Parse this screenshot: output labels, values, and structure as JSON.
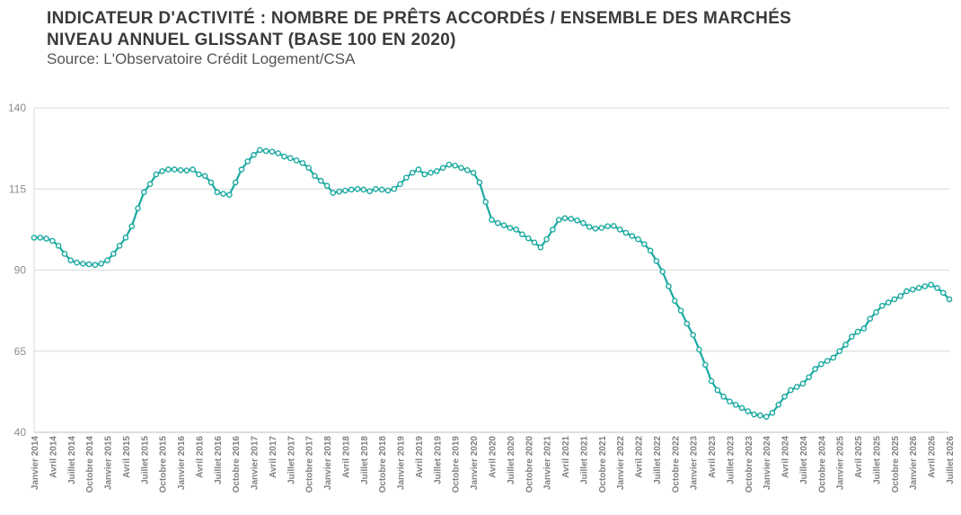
{
  "header": {
    "title_line1": "INDICATEUR D'ACTIVITÉ : NOMBRE DE PRÊTS ACCORDÉS / ENSEMBLE DES MARCHÉS",
    "title_line2": "NIVEAU ANNUEL GLISSANT (BASE 100 EN 2020)",
    "subtitle": "Source: L'Observatoire Crédit Logement/CSA"
  },
  "chart_data": {
    "type": "line",
    "title": "INDICATEUR D'ACTIVITÉ : NOMBRE DE PRÊTS ACCORDÉS / ENSEMBLE DES MARCHÉS",
    "subtitle": "NIVEAU ANNUEL GLISSANT (BASE 100 EN 2020)",
    "xlabel": "",
    "ylabel": "",
    "ylim": [
      40,
      140
    ],
    "yticks": [
      40,
      65,
      90,
      115,
      140
    ],
    "grid": "horizontal",
    "line_color": "#1aa9a0",
    "marker": "hollow-circle",
    "x_tick_labels": [
      "Janvier 2014",
      "Avril 2014",
      "Juillet 2014",
      "Octobre 2014",
      "Janvier 2015",
      "Avril 2015",
      "Juillet 2015",
      "Octobre 2015",
      "Janvier 2016",
      "Avril 2016",
      "Juillet 2016",
      "Octobre 2016",
      "Janvier 2017",
      "Avril 2017",
      "Juillet 2017",
      "Octobre 2017",
      "Janvier 2018",
      "Avril 2018",
      "Juillet 2018",
      "Octobre 2018",
      "Janvier 2019",
      "Avril 2019",
      "Juillet 2019",
      "Octobre 2019",
      "Janvier 2020",
      "Avril 2020",
      "Juillet 2020",
      "Octobre 2020",
      "Janvier 2021",
      "Avril 2021",
      "Juillet 2021",
      "Octobre 2021",
      "Janvier 2022",
      "Avril 2022",
      "Juillet 2022",
      "Octobre 2022",
      "Janvier 2023",
      "Avril 2023",
      "Juillet 2023",
      "Octobre 2023",
      "Janvier 2024",
      "Avril 2024",
      "Juillet 2024",
      "Octobre 2024",
      "Janvier 2025",
      "Avril 2025",
      "Juillet 2025",
      "Octobre 2025",
      "Janvier 2026",
      "Avril 2026",
      "Juillet 2026"
    ],
    "series": [
      {
        "values": [
          100,
          100,
          99.7,
          99,
          97.5,
          95,
          93,
          92.3,
          92,
          91.8,
          91.6,
          92,
          93,
          95,
          97.5,
          100,
          103.5,
          109,
          114,
          116.5,
          119.5,
          120.5,
          121,
          121,
          120.8,
          120.7,
          121,
          119.5,
          119,
          117,
          114,
          113.5,
          113.2,
          117,
          121,
          123.5,
          125.5,
          127,
          126.7,
          126.5,
          126,
          125,
          124.5,
          123.8,
          123,
          121.5,
          119,
          117.5,
          116,
          113.8,
          114.2,
          114.5,
          114.8,
          115,
          114.8,
          114.3,
          115,
          114.8,
          114.5,
          115,
          116.5,
          118.5,
          120,
          121,
          119.5,
          120,
          120.5,
          121.5,
          122.5,
          122.2,
          121.5,
          120.8,
          120,
          117,
          111,
          105.5,
          104.5,
          103.8,
          103,
          102.5,
          101,
          99.8,
          98.5,
          97,
          99.5,
          102.5,
          105.5,
          106,
          105.8,
          105.3,
          104.5,
          103.3,
          102.8,
          103,
          103.5,
          103.6,
          102.5,
          101.5,
          100.5,
          99.5,
          98,
          96,
          92.8,
          89.5,
          85,
          80.5,
          77.5,
          73.5,
          70,
          65.5,
          60.8,
          55.8,
          53,
          51,
          49.5,
          48.5,
          47.5,
          46.5,
          45.5,
          45.2,
          44.8,
          46,
          48.5,
          51,
          53,
          54,
          55,
          57,
          59.5,
          61,
          62,
          63,
          65,
          67,
          69.5,
          71,
          72,
          75,
          77,
          79,
          80,
          81,
          82,
          83.5,
          84,
          84.5,
          85,
          85.5,
          84.5,
          83,
          81
        ]
      }
    ]
  }
}
